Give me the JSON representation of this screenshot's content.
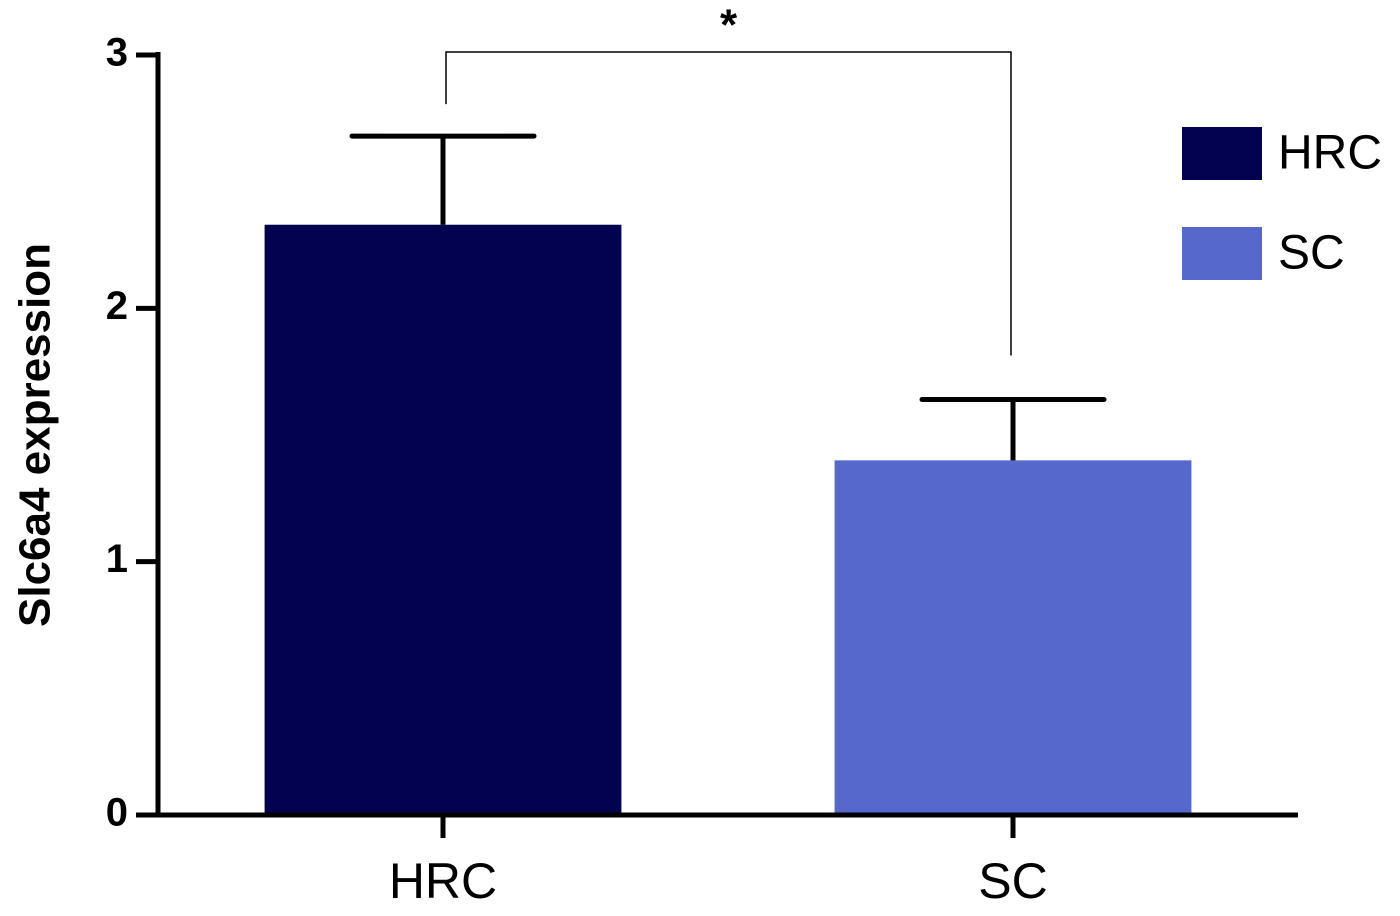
{
  "chart_data": {
    "type": "bar",
    "ylabel": "Slc6a4 expression",
    "categories": [
      "HRC",
      "SC"
    ],
    "values": [
      2.33,
      1.4
    ],
    "errors": [
      0.35,
      0.24
    ],
    "colors": [
      "#020250",
      "#5668cc"
    ],
    "ylim": [
      0,
      3
    ],
    "yticks": [
      0,
      1,
      2,
      3
    ],
    "legend": "top-right",
    "annotations": [
      {
        "text": "*",
        "between": [
          0,
          1
        ]
      }
    ]
  }
}
